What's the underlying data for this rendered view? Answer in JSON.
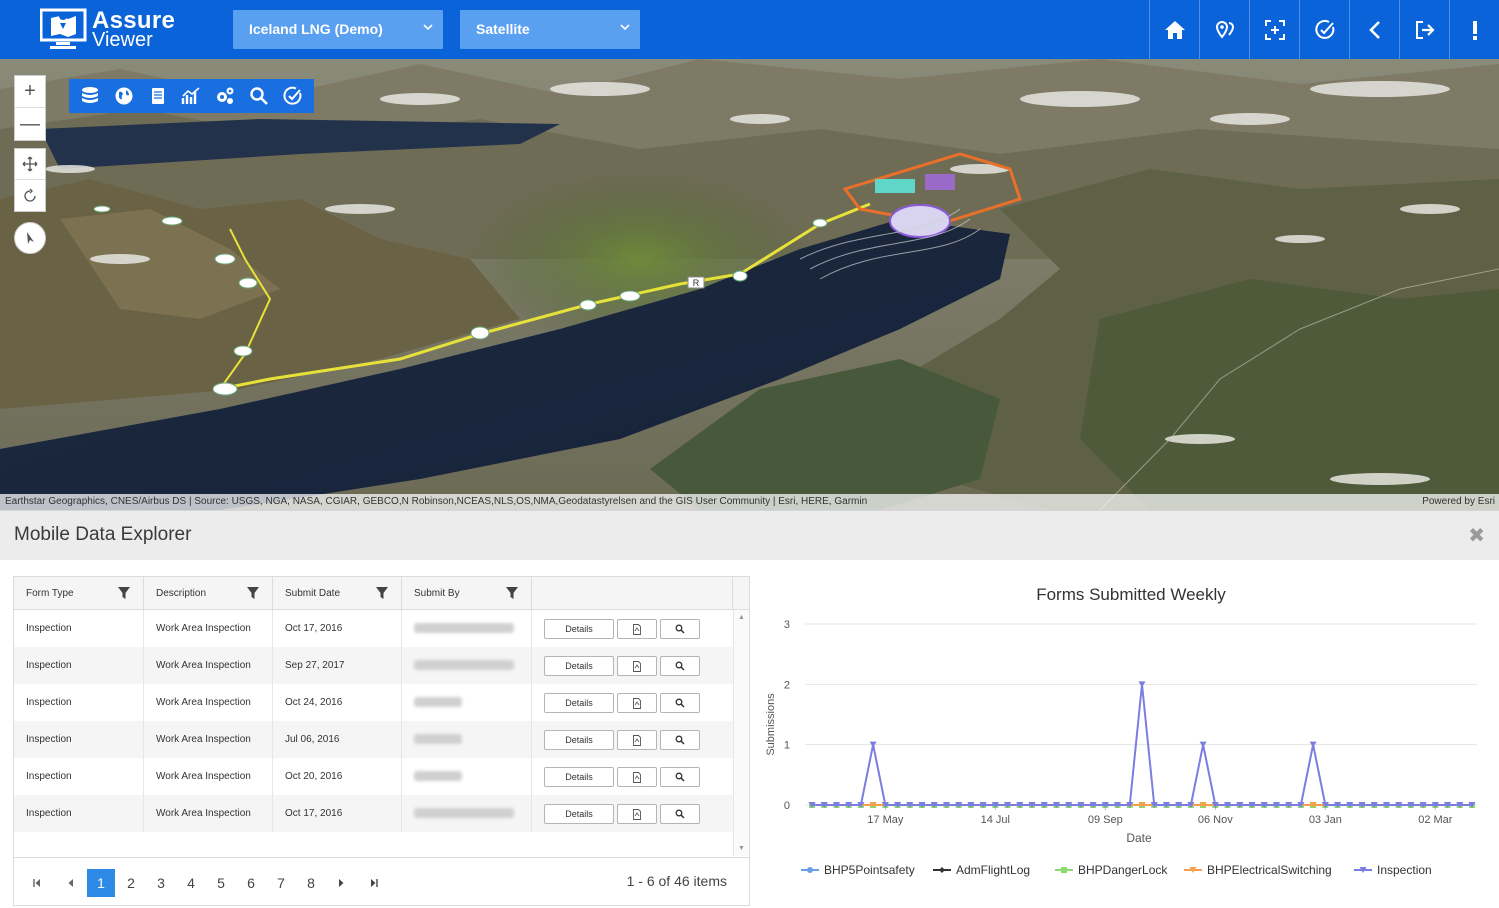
{
  "header": {
    "logo_line1": "Assure",
    "logo_line2": "Viewer",
    "project_select": "Iceland LNG (Demo)",
    "basemap_select": "Satellite",
    "buttons": [
      "home-icon",
      "map-pin-icon",
      "extent-icon",
      "check-icon",
      "back-icon",
      "logout-icon",
      "alert-icon"
    ]
  },
  "map": {
    "zoom_in": "+",
    "zoom_out": "—",
    "road_label": "R",
    "attribution": "Earthstar Geographics, CNES/Airbus DS | Source: USGS, NGA, NASA, CGIAR, GEBCO,N Robinson,NCEAS,NLS,OS,NMA,Geodatastyrelsen and the GIS User Community | Esri, HERE, Garmin",
    "powered_by": "Powered by Esri"
  },
  "explorer": {
    "title": "Mobile Data Explorer",
    "close": "✖",
    "columns": [
      "Form Type",
      "Description",
      "Submit Date",
      "Submit By"
    ],
    "rows": [
      {
        "form_type": "Inspection",
        "description": "Work Area Inspection",
        "date": "Oct 17, 2016"
      },
      {
        "form_type": "Inspection",
        "description": "Work Area Inspection",
        "date": "Sep 27, 2017"
      },
      {
        "form_type": "Inspection",
        "description": "Work Area Inspection",
        "date": "Oct 24, 2016"
      },
      {
        "form_type": "Inspection",
        "description": "Work Area Inspection",
        "date": "Jul 06, 2016"
      },
      {
        "form_type": "Inspection",
        "description": "Work Area Inspection",
        "date": "Oct 20, 2016"
      },
      {
        "form_type": "Inspection",
        "description": "Work Area Inspection",
        "date": "Oct 17, 2016"
      }
    ],
    "details_label": "Details",
    "pages": [
      "1",
      "2",
      "3",
      "4",
      "5",
      "6",
      "7",
      "8"
    ],
    "current_page": "1",
    "pager_info": "1 - 6 of 46 items"
  },
  "chart_data": {
    "type": "line",
    "title": "Forms Submitted Weekly",
    "xlabel": "Date",
    "ylabel": "Submissions",
    "ylim": [
      0,
      3
    ],
    "yticks": [
      "0",
      "1",
      "2",
      "3"
    ],
    "xtick_labels": [
      "17 May",
      "14 Jul",
      "09 Sep",
      "06 Nov",
      "03 Jan",
      "02 Mar"
    ],
    "weeks": 55,
    "grid": true,
    "legend_position": "bottom",
    "series": [
      {
        "name": "BHP5Pointsafety",
        "color": "#6a9ee8",
        "values": [
          0,
          0,
          0,
          0,
          0,
          0,
          0,
          0,
          0,
          0,
          0,
          0,
          0,
          0,
          0,
          0,
          0,
          0,
          0,
          0,
          0,
          0,
          0,
          0,
          0,
          0,
          0,
          0,
          0,
          0,
          0,
          0,
          0,
          0,
          0,
          0,
          0,
          0,
          0,
          0,
          0,
          0,
          0,
          0,
          0,
          0,
          0,
          0,
          0,
          0,
          0,
          0,
          0,
          0,
          0
        ]
      },
      {
        "name": "AdmFlightLog",
        "color": "#333333",
        "values": [
          0,
          0,
          0,
          0,
          0,
          0,
          0,
          0,
          0,
          0,
          0,
          0,
          0,
          0,
          0,
          0,
          0,
          0,
          0,
          0,
          0,
          0,
          0,
          0,
          0,
          0,
          0,
          0,
          0,
          0,
          0,
          0,
          0,
          0,
          0,
          0,
          0,
          0,
          0,
          0,
          0,
          0,
          0,
          0,
          0,
          0,
          0,
          0,
          0,
          0,
          0,
          0,
          0,
          0,
          0
        ]
      },
      {
        "name": "BHPDangerLock",
        "color": "#86dc6e",
        "values": [
          0,
          0,
          0,
          0,
          0,
          0,
          0,
          0,
          0,
          0,
          0,
          0,
          0,
          0,
          0,
          0,
          0,
          0,
          0,
          0,
          0,
          0,
          0,
          0,
          0,
          0,
          0,
          0,
          0,
          0,
          0,
          0,
          0,
          0,
          0,
          0,
          0,
          0,
          0,
          0,
          0,
          0,
          0,
          0,
          0,
          0,
          0,
          0,
          0,
          0,
          0,
          0,
          0,
          0,
          0
        ]
      },
      {
        "name": "BHPElectricalSwitching",
        "color": "#f5a04e",
        "values": [
          0,
          0,
          0,
          0,
          0,
          0,
          0,
          0,
          0,
          0,
          0,
          0,
          0,
          0,
          0,
          0,
          0,
          0,
          0,
          0,
          0,
          0,
          0,
          0,
          0,
          0,
          0,
          0,
          0,
          0,
          0,
          0,
          0,
          0,
          0,
          0,
          0,
          0,
          0,
          0,
          0,
          0,
          0,
          0,
          0,
          0,
          0,
          0,
          0,
          0,
          0,
          0,
          0,
          0,
          0
        ]
      },
      {
        "name": "Inspection",
        "color": "#7b7ee0",
        "values": [
          0,
          0,
          0,
          0,
          0,
          1,
          0,
          0,
          0,
          0,
          0,
          0,
          0,
          0,
          0,
          0,
          0,
          0,
          0,
          0,
          0,
          0,
          0,
          0,
          0,
          0,
          0,
          2,
          0,
          0,
          0,
          0,
          1,
          0,
          0,
          0,
          0,
          0,
          0,
          0,
          0,
          1,
          0,
          0,
          0,
          0,
          0,
          0,
          0,
          0,
          0,
          0,
          0,
          0,
          0
        ]
      }
    ]
  }
}
